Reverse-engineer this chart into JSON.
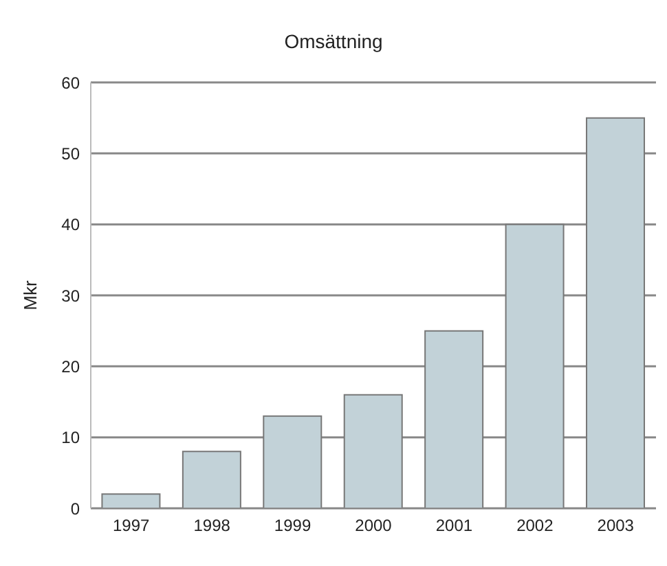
{
  "chart_data": {
    "type": "bar",
    "title": "Omsättning",
    "ylabel": "Mkr",
    "categories": [
      "1997",
      "1998",
      "1999",
      "2000",
      "2001",
      "2002",
      "2003"
    ],
    "values": [
      2,
      8,
      13,
      16,
      25,
      40,
      55
    ],
    "color": "#c2d2d8",
    "ylim": [
      0,
      60
    ],
    "yticks": [
      0,
      10,
      20,
      30,
      40,
      50,
      60
    ],
    "grid": "y"
  }
}
